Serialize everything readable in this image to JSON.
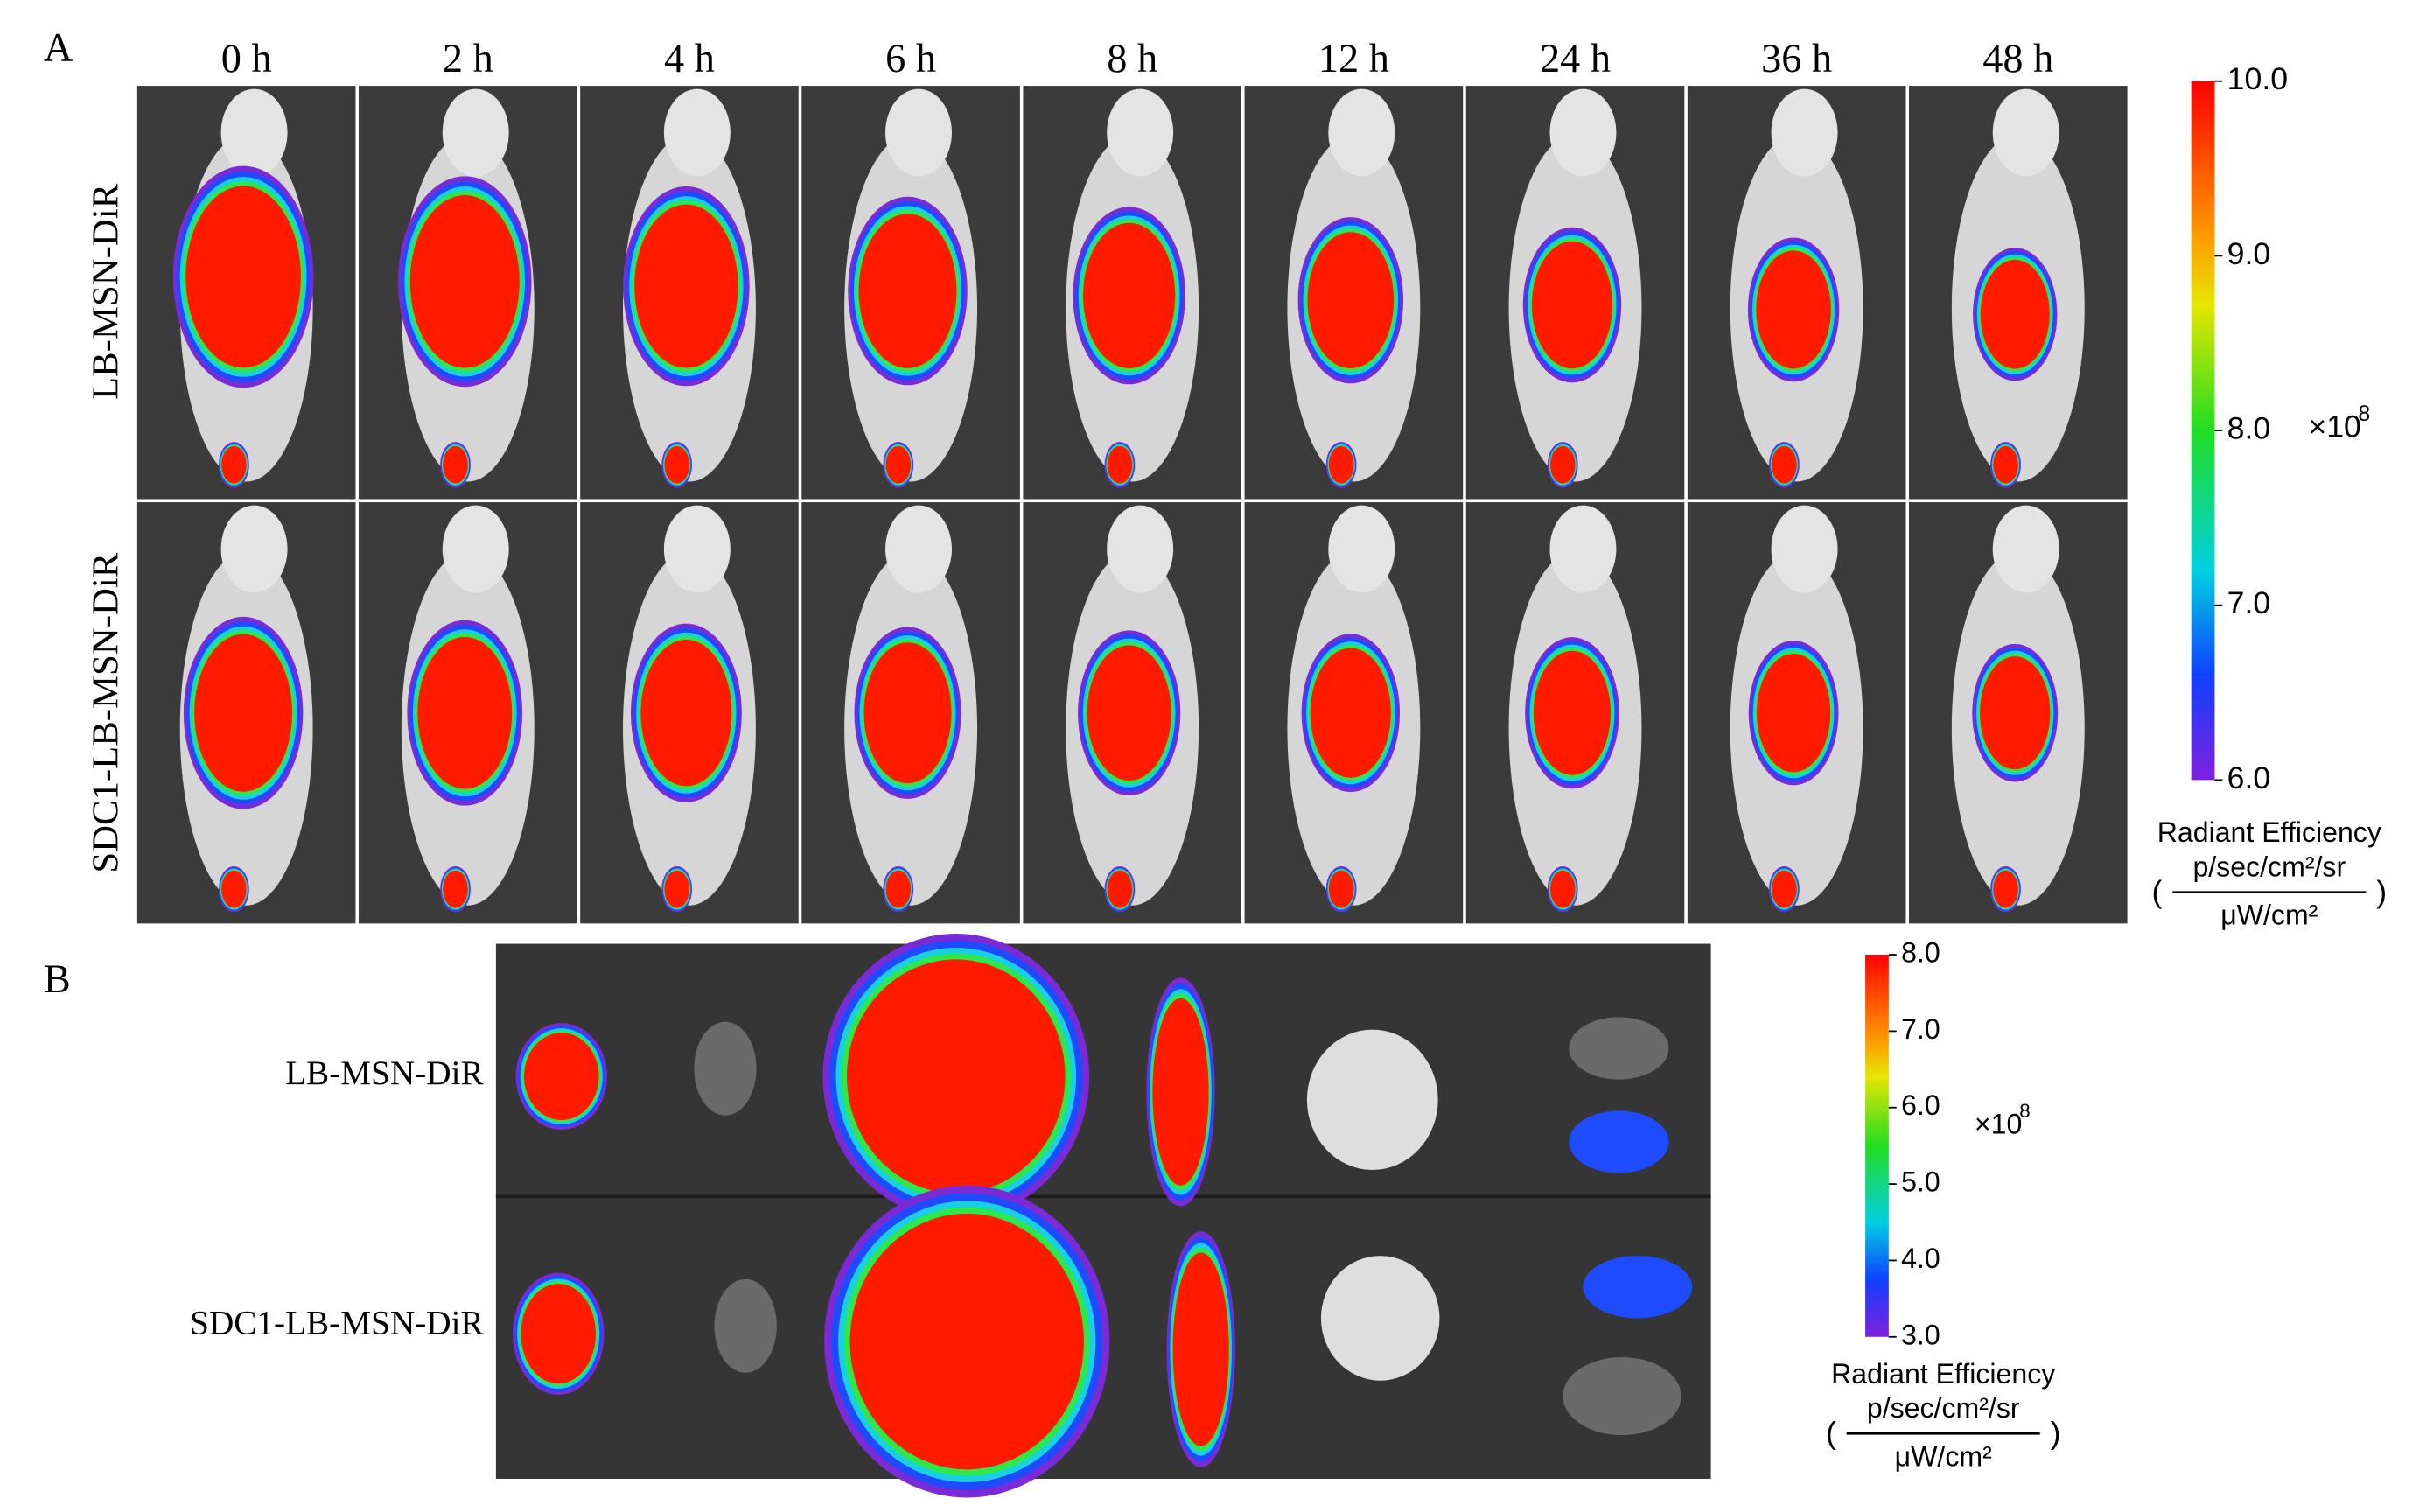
{
  "panel_a": {
    "label": "A",
    "time_points": [
      "0 h",
      "2 h",
      "4 h",
      "6 h",
      "8 h",
      "12 h",
      "24 h",
      "36 h",
      "48 h"
    ],
    "row_labels": [
      "LB-MSN-DiR",
      "SDC1-LB-MSN-DiR"
    ],
    "colorbar": {
      "range": [
        6,
        10
      ],
      "ticks": [
        {
          "value": 10,
          "label": "10.0"
        },
        {
          "value": 9,
          "label": "9.0"
        },
        {
          "value": 8,
          "label": "8.0"
        },
        {
          "value": 7,
          "label": "7.0"
        },
        {
          "value": 6,
          "label": "6.0"
        }
      ],
      "multiplier_base": "×10",
      "multiplier_exponent": "8",
      "title": "Radiant Efficiency",
      "unit_numerator": "p/sec/cm²/sr",
      "unit_denominator": "μW/cm²",
      "paren_open": "(",
      "paren_close": ")"
    }
  },
  "panel_b": {
    "label": "B",
    "row_labels": [
      "LB-MSN-DiR",
      "SDC1-LB-MSN-DiR"
    ],
    "colorbar": {
      "range": [
        3,
        8
      ],
      "ticks": [
        {
          "value": 8,
          "label": "8.0"
        },
        {
          "value": 7,
          "label": "7.0"
        },
        {
          "value": 6,
          "label": "6.0"
        },
        {
          "value": 5,
          "label": "5.0"
        },
        {
          "value": 4,
          "label": "4.0"
        },
        {
          "value": 3,
          "label": "3.0"
        }
      ],
      "multiplier_base": "×10",
      "multiplier_exponent": "8",
      "title": "Radiant Efficiency",
      "unit_numerator": "p/sec/cm²/sr",
      "unit_denominator": "μW/cm²",
      "paren_open": "(",
      "paren_close": ")"
    }
  }
}
